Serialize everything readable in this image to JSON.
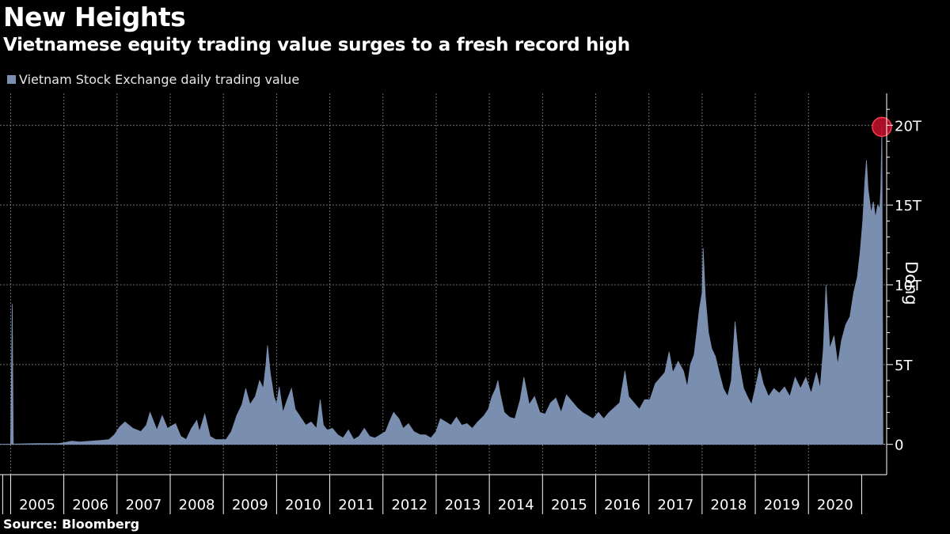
{
  "header": {
    "title": "New Heights",
    "subtitle": "Vietnamese equity trading value surges to a fresh record high"
  },
  "legend": {
    "label": "Vietnam Stock Exchange daily trading value",
    "color": "#7a8eb0"
  },
  "footer": {
    "source": "Source: Bloomberg"
  },
  "chart_data": {
    "type": "area",
    "title": "New Heights",
    "subtitle": "Vietnamese equity trading value surges to a fresh record high",
    "ylabel": "Dong",
    "xlabel": "",
    "ylim": [
      -1.9,
      22
    ],
    "y_ticks": [
      0,
      5,
      10,
      15,
      20
    ],
    "y_tick_labels": [
      "0",
      "5T",
      "10T",
      "15T",
      "20T"
    ],
    "y_unit": "trillion dong",
    "x_start": 2004.8,
    "x_end": 2021.47,
    "x_year_labels": [
      "2005",
      "2006",
      "2007",
      "2008",
      "2009",
      "2010",
      "2011",
      "2012",
      "2013",
      "2014",
      "2015",
      "2016",
      "2017",
      "2018",
      "2019",
      "2020"
    ],
    "grid": true,
    "legend_position": "top-left",
    "series_color": "#7a8eb0",
    "highlight_color": "#c8102e",
    "series": [
      {
        "name": "Vietnam Stock Exchange daily trading value",
        "points": [
          [
            2004.8,
            0
          ],
          [
            2005.0,
            0.02
          ],
          [
            2005.03,
            8.8
          ],
          [
            2005.05,
            0.02
          ],
          [
            2005.5,
            0.05
          ],
          [
            2005.9,
            0.05
          ],
          [
            2006.0,
            0.1
          ],
          [
            2006.15,
            0.2
          ],
          [
            2006.3,
            0.15
          ],
          [
            2006.5,
            0.2
          ],
          [
            2006.7,
            0.25
          ],
          [
            2006.85,
            0.3
          ],
          [
            2006.95,
            0.6
          ],
          [
            2007.05,
            1.1
          ],
          [
            2007.15,
            1.4
          ],
          [
            2007.3,
            1.0
          ],
          [
            2007.45,
            0.8
          ],
          [
            2007.55,
            1.2
          ],
          [
            2007.62,
            2.0
          ],
          [
            2007.75,
            0.9
          ],
          [
            2007.85,
            1.8
          ],
          [
            2007.95,
            1.0
          ],
          [
            2008.1,
            1.3
          ],
          [
            2008.2,
            0.5
          ],
          [
            2008.3,
            0.3
          ],
          [
            2008.4,
            1.0
          ],
          [
            2008.5,
            1.5
          ],
          [
            2008.55,
            0.8
          ],
          [
            2008.65,
            1.9
          ],
          [
            2008.75,
            0.5
          ],
          [
            2008.85,
            0.3
          ],
          [
            2008.95,
            0.3
          ],
          [
            2009.05,
            0.3
          ],
          [
            2009.15,
            0.8
          ],
          [
            2009.25,
            1.8
          ],
          [
            2009.35,
            2.5
          ],
          [
            2009.42,
            3.5
          ],
          [
            2009.5,
            2.5
          ],
          [
            2009.6,
            3.0
          ],
          [
            2009.68,
            4.0
          ],
          [
            2009.75,
            3.5
          ],
          [
            2009.8,
            5.0
          ],
          [
            2009.83,
            6.2
          ],
          [
            2009.88,
            4.5
          ],
          [
            2009.95,
            3.0
          ],
          [
            2010.0,
            2.5
          ],
          [
            2010.05,
            3.6
          ],
          [
            2010.12,
            2.0
          ],
          [
            2010.2,
            2.8
          ],
          [
            2010.28,
            3.5
          ],
          [
            2010.35,
            2.2
          ],
          [
            2010.45,
            1.7
          ],
          [
            2010.55,
            1.2
          ],
          [
            2010.65,
            1.4
          ],
          [
            2010.75,
            1.0
          ],
          [
            2010.82,
            2.8
          ],
          [
            2010.88,
            1.2
          ],
          [
            2010.95,
            0.9
          ],
          [
            2011.05,
            1.0
          ],
          [
            2011.15,
            0.6
          ],
          [
            2011.25,
            0.4
          ],
          [
            2011.35,
            0.9
          ],
          [
            2011.45,
            0.3
          ],
          [
            2011.55,
            0.5
          ],
          [
            2011.65,
            1.0
          ],
          [
            2011.75,
            0.5
          ],
          [
            2011.85,
            0.4
          ],
          [
            2011.95,
            0.6
          ],
          [
            2012.05,
            0.8
          ],
          [
            2012.12,
            1.4
          ],
          [
            2012.2,
            2.0
          ],
          [
            2012.3,
            1.6
          ],
          [
            2012.38,
            1.0
          ],
          [
            2012.48,
            1.3
          ],
          [
            2012.58,
            0.8
          ],
          [
            2012.7,
            0.6
          ],
          [
            2012.8,
            0.6
          ],
          [
            2012.9,
            0.4
          ],
          [
            2013.0,
            0.8
          ],
          [
            2013.08,
            1.6
          ],
          [
            2013.18,
            1.4
          ],
          [
            2013.28,
            1.2
          ],
          [
            2013.38,
            1.7
          ],
          [
            2013.48,
            1.2
          ],
          [
            2013.58,
            1.3
          ],
          [
            2013.68,
            1.0
          ],
          [
            2013.78,
            1.4
          ],
          [
            2013.9,
            1.8
          ],
          [
            2013.98,
            2.2
          ],
          [
            2014.05,
            3.0
          ],
          [
            2014.12,
            3.5
          ],
          [
            2014.16,
            4.0
          ],
          [
            2014.2,
            3.2
          ],
          [
            2014.28,
            2.0
          ],
          [
            2014.38,
            1.7
          ],
          [
            2014.48,
            1.6
          ],
          [
            2014.58,
            2.8
          ],
          [
            2014.65,
            4.2
          ],
          [
            2014.75,
            2.5
          ],
          [
            2014.85,
            3.0
          ],
          [
            2014.95,
            2.0
          ],
          [
            2015.05,
            1.9
          ],
          [
            2015.15,
            2.6
          ],
          [
            2015.25,
            2.9
          ],
          [
            2015.35,
            2.0
          ],
          [
            2015.45,
            3.1
          ],
          [
            2015.55,
            2.7
          ],
          [
            2015.65,
            2.3
          ],
          [
            2015.75,
            2.0
          ],
          [
            2015.85,
            1.8
          ],
          [
            2015.95,
            1.6
          ],
          [
            2016.05,
            2.0
          ],
          [
            2016.15,
            1.6
          ],
          [
            2016.25,
            2.0
          ],
          [
            2016.35,
            2.3
          ],
          [
            2016.45,
            2.6
          ],
          [
            2016.55,
            4.6
          ],
          [
            2016.62,
            3.0
          ],
          [
            2016.72,
            2.6
          ],
          [
            2016.82,
            2.2
          ],
          [
            2016.92,
            2.8
          ],
          [
            2017.02,
            2.8
          ],
          [
            2017.12,
            3.8
          ],
          [
            2017.22,
            4.2
          ],
          [
            2017.3,
            4.5
          ],
          [
            2017.38,
            5.8
          ],
          [
            2017.45,
            4.5
          ],
          [
            2017.55,
            5.2
          ],
          [
            2017.65,
            4.6
          ],
          [
            2017.72,
            3.6
          ],
          [
            2017.78,
            5.0
          ],
          [
            2017.85,
            5.6
          ],
          [
            2017.9,
            7.0
          ],
          [
            2017.95,
            8.5
          ],
          [
            2018.0,
            9.5
          ],
          [
            2018.02,
            12.3
          ],
          [
            2018.06,
            9.3
          ],
          [
            2018.12,
            7.0
          ],
          [
            2018.18,
            6.0
          ],
          [
            2018.25,
            5.5
          ],
          [
            2018.32,
            4.5
          ],
          [
            2018.4,
            3.5
          ],
          [
            2018.48,
            3.0
          ],
          [
            2018.55,
            4.0
          ],
          [
            2018.62,
            7.7
          ],
          [
            2018.7,
            5.0
          ],
          [
            2018.78,
            3.5
          ],
          [
            2018.85,
            3.0
          ],
          [
            2018.93,
            2.5
          ],
          [
            2019.0,
            3.5
          ],
          [
            2019.08,
            4.8
          ],
          [
            2019.15,
            3.8
          ],
          [
            2019.25,
            3.0
          ],
          [
            2019.35,
            3.5
          ],
          [
            2019.45,
            3.2
          ],
          [
            2019.55,
            3.6
          ],
          [
            2019.65,
            3.0
          ],
          [
            2019.75,
            4.2
          ],
          [
            2019.85,
            3.5
          ],
          [
            2019.95,
            4.2
          ],
          [
            2020.05,
            3.2
          ],
          [
            2020.15,
            4.5
          ],
          [
            2020.22,
            3.5
          ],
          [
            2020.28,
            6.0
          ],
          [
            2020.33,
            10.0
          ],
          [
            2020.4,
            6.0
          ],
          [
            2020.48,
            6.8
          ],
          [
            2020.55,
            5.0
          ],
          [
            2020.62,
            6.5
          ],
          [
            2020.7,
            7.5
          ],
          [
            2020.78,
            8.0
          ],
          [
            2020.85,
            9.5
          ],
          [
            2020.92,
            10.5
          ],
          [
            2020.97,
            12.0
          ],
          [
            2021.02,
            14.0
          ],
          [
            2021.06,
            16.5
          ],
          [
            2021.09,
            17.8
          ],
          [
            2021.12,
            16.0
          ],
          [
            2021.18,
            14.5
          ],
          [
            2021.22,
            15.2
          ],
          [
            2021.26,
            14.2
          ],
          [
            2021.3,
            15.0
          ],
          [
            2021.34,
            14.8
          ],
          [
            2021.36,
            16.0
          ],
          [
            2021.38,
            19.9
          ],
          [
            2021.4,
            0
          ]
        ]
      }
    ],
    "highlight_point": {
      "x": 2021.38,
      "y": 19.9
    }
  }
}
